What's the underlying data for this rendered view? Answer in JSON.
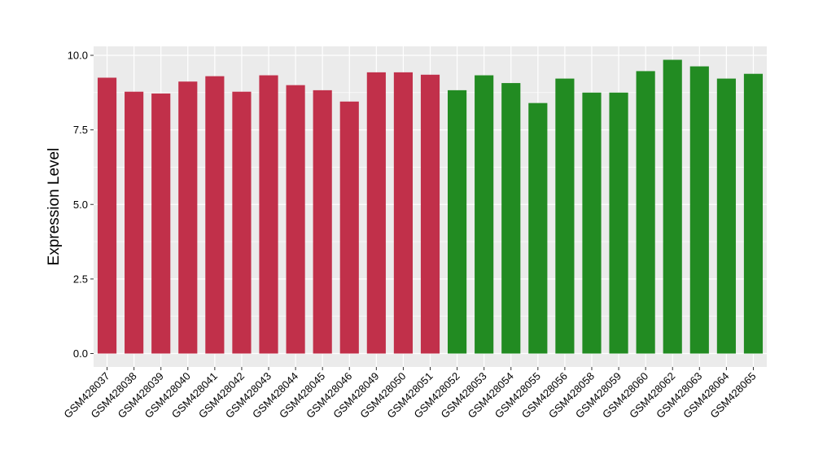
{
  "chart_data": {
    "type": "bar",
    "title": "",
    "xlabel": "",
    "ylabel": "Expression Level",
    "ylim": [
      -0.45,
      10.3
    ],
    "yticks": [
      0.0,
      2.5,
      5.0,
      7.5,
      10.0
    ],
    "ytick_labels": [
      "0.0",
      "2.5",
      "5.0",
      "7.5",
      "10.0"
    ],
    "grid": true,
    "legend": "none",
    "background_color": "#ebebeb",
    "grid_color": "#ffffff",
    "categories": [
      "GSM428037",
      "GSM428038",
      "GSM428039",
      "GSM428040",
      "GSM428041",
      "GSM428042",
      "GSM428043",
      "GSM428044",
      "GSM428045",
      "GSM428046",
      "GSM428049",
      "GSM428050",
      "GSM428051",
      "GSM428052",
      "GSM428053",
      "GSM428054",
      "GSM428055",
      "GSM428056",
      "GSM428058",
      "GSM428059",
      "GSM428060",
      "GSM428062",
      "GSM428063",
      "GSM428064",
      "GSM428065"
    ],
    "values": [
      9.25,
      8.78,
      8.72,
      9.12,
      9.3,
      8.78,
      9.33,
      9.0,
      8.83,
      8.45,
      9.43,
      9.43,
      9.35,
      8.83,
      9.33,
      9.07,
      8.4,
      9.22,
      8.75,
      8.75,
      9.47,
      9.85,
      9.63,
      9.22,
      9.38
    ],
    "bar_colors": [
      "#c1304a",
      "#c1304a",
      "#c1304a",
      "#c1304a",
      "#c1304a",
      "#c1304a",
      "#c1304a",
      "#c1304a",
      "#c1304a",
      "#c1304a",
      "#c1304a",
      "#c1304a",
      "#c1304a",
      "#228b22",
      "#228b22",
      "#228b22",
      "#228b22",
      "#228b22",
      "#228b22",
      "#228b22",
      "#228b22",
      "#228b22",
      "#228b22",
      "#228b22",
      "#228b22"
    ]
  }
}
